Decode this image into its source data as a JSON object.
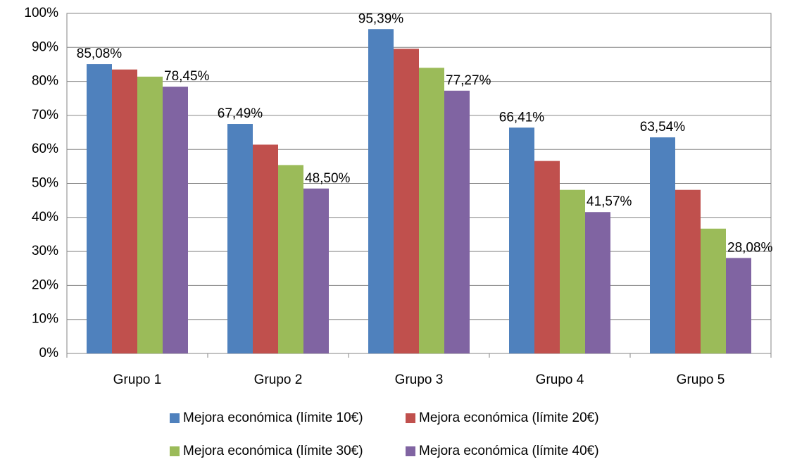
{
  "chart_data": {
    "type": "bar",
    "categories": [
      "Grupo 1",
      "Grupo 2",
      "Grupo 3",
      "Grupo 4",
      "Grupo 5"
    ],
    "series": [
      {
        "name": "Mejora económica (límite 10€)",
        "color": "#4f81bd",
        "values": [
          85.08,
          67.49,
          95.39,
          66.41,
          63.54
        ],
        "value_labels": [
          "85,08%",
          "67,49%",
          "95,39%",
          "66,41%",
          "63,54%"
        ]
      },
      {
        "name": "Mejora económica (límite 20€)",
        "color": "#c0504d",
        "values": [
          83.5,
          61.4,
          89.6,
          56.6,
          48.1
        ]
      },
      {
        "name": "Mejora económica (límite 30€)",
        "color": "#9bbb59",
        "values": [
          81.4,
          55.4,
          84.0,
          48.1,
          36.7
        ]
      },
      {
        "name": "Mejora económica (límite 40€)",
        "color": "#8064a2",
        "values": [
          78.45,
          48.5,
          77.27,
          41.57,
          28.08
        ],
        "value_labels": [
          "78,45%",
          "48,50%",
          "77,27%",
          "41,57%",
          "28,08%"
        ]
      }
    ],
    "ylim": [
      0,
      100
    ],
    "yticks": [
      {
        "value": 0,
        "label": "0%"
      },
      {
        "value": 10,
        "label": "10%"
      },
      {
        "value": 20,
        "label": "20%"
      },
      {
        "value": 30,
        "label": "30%"
      },
      {
        "value": 40,
        "label": "40%"
      },
      {
        "value": 50,
        "label": "50%"
      },
      {
        "value": 60,
        "label": "60%"
      },
      {
        "value": 70,
        "label": "70%"
      },
      {
        "value": 80,
        "label": "80%"
      },
      {
        "value": 90,
        "label": "90%"
      },
      {
        "value": 100,
        "label": "100%"
      }
    ],
    "grid": true,
    "legend": "bottom"
  }
}
